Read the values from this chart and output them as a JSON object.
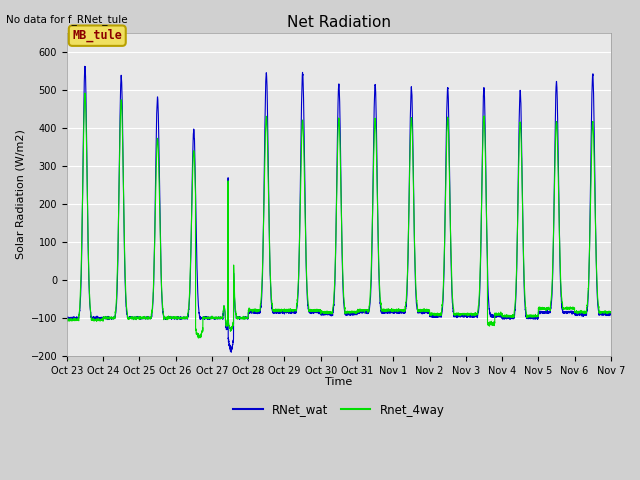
{
  "title": "Net Radiation",
  "ylabel": "Solar Radiation (W/m2)",
  "xlabel": "Time",
  "ylim": [
    -200,
    650
  ],
  "yticks": [
    -200,
    -100,
    0,
    100,
    200,
    300,
    400,
    500,
    600
  ],
  "no_data_text": "No data for f_RNet_tule",
  "legend_box_text": "MB_tule",
  "legend_box_color": "#b8a000",
  "legend_box_text_color": "#8b0000",
  "line1_color": "#0000cc",
  "line2_color": "#00dd00",
  "line1_label": "RNet_wat",
  "line2_label": "Rnet_4way",
  "background_color": "#e8e8e8",
  "grid_color": "#ffffff",
  "n_days": 15,
  "x_tick_labels": [
    "Oct 23",
    "Oct 24",
    "Oct 25",
    "Oct 26",
    "Oct 27",
    "Oct 28",
    "Oct 29",
    "Oct 30",
    "Oct 31",
    "Nov 1",
    "Nov 2",
    "Nov 3",
    "Nov 4",
    "Nov 5",
    "Nov 6",
    "Nov 7"
  ],
  "fig_width": 6.4,
  "fig_height": 4.8,
  "dpi": 100
}
